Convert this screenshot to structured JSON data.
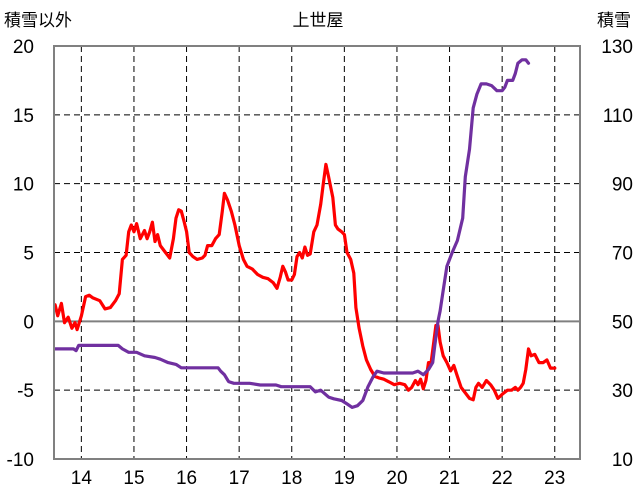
{
  "chart_data": {
    "type": "line",
    "title": "上世屋",
    "left_axis_label": "積雪以外",
    "right_axis_label": "積雪",
    "x_tick_labels": [
      "14",
      "15",
      "16",
      "17",
      "18",
      "19",
      "20",
      "21",
      "22",
      "23"
    ],
    "x_ticks": [
      14,
      15,
      16,
      17,
      18,
      19,
      20,
      21,
      22,
      23
    ],
    "xlim": [
      13.48,
      23.48
    ],
    "ylim_left": [
      -10,
      20
    ],
    "ylim_right": [
      10,
      130
    ],
    "y_ticks_left": [
      20,
      15,
      10,
      5,
      0,
      -5,
      -10
    ],
    "y_ticks_right": [
      130,
      110,
      90,
      70,
      50,
      30,
      10
    ],
    "grid": true,
    "legend": "none",
    "colors": {
      "red_series": "#ff0000",
      "purple_series": "#7030a0",
      "grid": "#000000",
      "zero_line": "#808080"
    },
    "series": [
      {
        "axis": "left",
        "color": "#ff0000",
        "points": [
          [
            13.5,
            1.2
          ],
          [
            13.55,
            0.4
          ],
          [
            13.62,
            1.3
          ],
          [
            13.68,
            -0.1
          ],
          [
            13.75,
            0.3
          ],
          [
            13.82,
            -0.5
          ],
          [
            13.88,
            -0.1
          ],
          [
            13.92,
            -0.6
          ],
          [
            14.0,
            0.4
          ],
          [
            14.08,
            1.8
          ],
          [
            14.15,
            1.9
          ],
          [
            14.22,
            1.7
          ],
          [
            14.35,
            1.5
          ],
          [
            14.45,
            0.9
          ],
          [
            14.55,
            1.0
          ],
          [
            14.65,
            1.5
          ],
          [
            14.72,
            2.0
          ],
          [
            14.78,
            4.5
          ],
          [
            14.85,
            4.8
          ],
          [
            14.9,
            6.5
          ],
          [
            14.95,
            7.0
          ],
          [
            15.0,
            6.5
          ],
          [
            15.05,
            7.1
          ],
          [
            15.12,
            6.0
          ],
          [
            15.2,
            6.6
          ],
          [
            15.25,
            6.0
          ],
          [
            15.3,
            6.5
          ],
          [
            15.35,
            7.2
          ],
          [
            15.4,
            5.8
          ],
          [
            15.45,
            6.3
          ],
          [
            15.5,
            5.5
          ],
          [
            15.6,
            5.0
          ],
          [
            15.68,
            4.6
          ],
          [
            15.75,
            6.0
          ],
          [
            15.8,
            7.5
          ],
          [
            15.85,
            8.1
          ],
          [
            15.9,
            8.0
          ],
          [
            15.95,
            7.3
          ],
          [
            16.0,
            6.5
          ],
          [
            16.05,
            5.0
          ],
          [
            16.12,
            4.7
          ],
          [
            16.2,
            4.5
          ],
          [
            16.3,
            4.6
          ],
          [
            16.35,
            4.8
          ],
          [
            16.4,
            5.5
          ],
          [
            16.48,
            5.5
          ],
          [
            16.55,
            6.0
          ],
          [
            16.62,
            6.3
          ],
          [
            16.68,
            8.0
          ],
          [
            16.72,
            9.3
          ],
          [
            16.78,
            8.8
          ],
          [
            16.85,
            8.0
          ],
          [
            16.92,
            7.0
          ],
          [
            17.0,
            5.5
          ],
          [
            17.08,
            4.5
          ],
          [
            17.15,
            4.0
          ],
          [
            17.25,
            3.8
          ],
          [
            17.35,
            3.4
          ],
          [
            17.45,
            3.2
          ],
          [
            17.55,
            3.1
          ],
          [
            17.65,
            2.8
          ],
          [
            17.72,
            2.4
          ],
          [
            17.78,
            3.2
          ],
          [
            17.83,
            4.0
          ],
          [
            17.88,
            3.6
          ],
          [
            17.93,
            3.0
          ],
          [
            18.0,
            3.0
          ],
          [
            18.05,
            3.4
          ],
          [
            18.1,
            4.7
          ],
          [
            18.15,
            5.0
          ],
          [
            18.2,
            4.6
          ],
          [
            18.25,
            5.4
          ],
          [
            18.3,
            4.8
          ],
          [
            18.35,
            4.9
          ],
          [
            18.42,
            6.5
          ],
          [
            18.48,
            7.0
          ],
          [
            18.55,
            8.5
          ],
          [
            18.6,
            10.0
          ],
          [
            18.65,
            11.4
          ],
          [
            18.7,
            10.5
          ],
          [
            18.78,
            9.0
          ],
          [
            18.83,
            7.0
          ],
          [
            18.88,
            6.7
          ],
          [
            18.95,
            6.5
          ],
          [
            19.0,
            6.3
          ],
          [
            19.05,
            5.0
          ],
          [
            19.12,
            4.5
          ],
          [
            19.18,
            3.5
          ],
          [
            19.22,
            1.0
          ],
          [
            19.28,
            -0.5
          ],
          [
            19.35,
            -1.8
          ],
          [
            19.42,
            -2.8
          ],
          [
            19.5,
            -3.5
          ],
          [
            19.58,
            -4.0
          ],
          [
            19.65,
            -4.1
          ],
          [
            19.75,
            -4.2
          ],
          [
            19.85,
            -4.4
          ],
          [
            19.95,
            -4.6
          ],
          [
            20.05,
            -4.5
          ],
          [
            20.15,
            -4.6
          ],
          [
            20.22,
            -5.0
          ],
          [
            20.28,
            -4.8
          ],
          [
            20.35,
            -4.3
          ],
          [
            20.4,
            -4.6
          ],
          [
            20.45,
            -4.2
          ],
          [
            20.5,
            -4.9
          ],
          [
            20.55,
            -4.3
          ],
          [
            20.6,
            -3.0
          ],
          [
            20.65,
            -3.0
          ],
          [
            20.7,
            -1.5
          ],
          [
            20.74,
            -0.3
          ],
          [
            20.78,
            -0.3
          ],
          [
            20.82,
            -1.5
          ],
          [
            20.88,
            -2.5
          ],
          [
            20.95,
            -3.0
          ],
          [
            21.02,
            -3.6
          ],
          [
            21.08,
            -3.2
          ],
          [
            21.15,
            -4.0
          ],
          [
            21.22,
            -4.8
          ],
          [
            21.3,
            -5.2
          ],
          [
            21.38,
            -5.6
          ],
          [
            21.45,
            -5.7
          ],
          [
            21.5,
            -4.8
          ],
          [
            21.55,
            -4.5
          ],
          [
            21.62,
            -4.8
          ],
          [
            21.7,
            -4.3
          ],
          [
            21.78,
            -4.6
          ],
          [
            21.85,
            -5.0
          ],
          [
            21.92,
            -5.6
          ],
          [
            22.0,
            -5.3
          ],
          [
            22.1,
            -5.0
          ],
          [
            22.18,
            -5.0
          ],
          [
            22.25,
            -4.8
          ],
          [
            22.3,
            -5.0
          ],
          [
            22.35,
            -4.8
          ],
          [
            22.4,
            -4.5
          ],
          [
            22.45,
            -3.5
          ],
          [
            22.5,
            -2.0
          ],
          [
            22.55,
            -2.5
          ],
          [
            22.62,
            -2.4
          ],
          [
            22.7,
            -3.0
          ],
          [
            22.78,
            -3.0
          ],
          [
            22.85,
            -2.8
          ],
          [
            22.92,
            -3.4
          ],
          [
            23.0,
            -3.4
          ]
        ]
      },
      {
        "axis": "right",
        "color": "#7030a0",
        "points": [
          [
            13.5,
            42
          ],
          [
            13.6,
            42
          ],
          [
            13.7,
            42
          ],
          [
            13.85,
            42
          ],
          [
            13.9,
            41.5
          ],
          [
            13.95,
            43
          ],
          [
            14.1,
            43
          ],
          [
            14.3,
            43
          ],
          [
            14.5,
            43
          ],
          [
            14.7,
            43
          ],
          [
            14.78,
            42
          ],
          [
            14.9,
            41
          ],
          [
            15.05,
            41
          ],
          [
            15.2,
            40
          ],
          [
            15.4,
            39.5
          ],
          [
            15.5,
            39
          ],
          [
            15.65,
            38
          ],
          [
            15.8,
            37.5
          ],
          [
            15.9,
            36.5
          ],
          [
            16.1,
            36.5
          ],
          [
            16.3,
            36.5
          ],
          [
            16.5,
            36.5
          ],
          [
            16.6,
            36.5
          ],
          [
            16.65,
            35.5
          ],
          [
            16.72,
            34.5
          ],
          [
            16.8,
            32.5
          ],
          [
            16.9,
            32
          ],
          [
            17.0,
            32
          ],
          [
            17.2,
            32
          ],
          [
            17.4,
            31.5
          ],
          [
            17.55,
            31.5
          ],
          [
            17.7,
            31.5
          ],
          [
            17.8,
            31
          ],
          [
            18.0,
            31
          ],
          [
            18.2,
            31
          ],
          [
            18.35,
            31
          ],
          [
            18.45,
            29.5
          ],
          [
            18.55,
            30
          ],
          [
            18.7,
            28
          ],
          [
            18.8,
            27.5
          ],
          [
            18.95,
            27
          ],
          [
            19.05,
            26
          ],
          [
            19.15,
            25
          ],
          [
            19.25,
            25.5
          ],
          [
            19.35,
            27
          ],
          [
            19.45,
            31
          ],
          [
            19.55,
            34
          ],
          [
            19.62,
            35.5
          ],
          [
            19.75,
            35
          ],
          [
            19.85,
            35
          ],
          [
            20.0,
            35
          ],
          [
            20.1,
            35
          ],
          [
            20.2,
            35
          ],
          [
            20.3,
            35
          ],
          [
            20.4,
            35.5
          ],
          [
            20.5,
            34.5
          ],
          [
            20.6,
            36
          ],
          [
            20.68,
            38
          ],
          [
            20.72,
            43
          ],
          [
            20.78,
            50
          ],
          [
            20.82,
            53
          ],
          [
            20.88,
            59
          ],
          [
            20.95,
            66
          ],
          [
            21.05,
            70
          ],
          [
            21.15,
            73.5
          ],
          [
            21.25,
            80
          ],
          [
            21.3,
            92
          ],
          [
            21.38,
            100
          ],
          [
            21.45,
            112
          ],
          [
            21.52,
            116
          ],
          [
            21.6,
            119
          ],
          [
            21.7,
            119
          ],
          [
            21.8,
            118.5
          ],
          [
            21.9,
            117
          ],
          [
            22.0,
            117
          ],
          [
            22.05,
            118
          ],
          [
            22.1,
            120
          ],
          [
            22.2,
            120
          ],
          [
            22.25,
            122
          ],
          [
            22.3,
            125
          ],
          [
            22.38,
            126
          ],
          [
            22.45,
            126
          ],
          [
            22.5,
            125
          ]
        ]
      }
    ]
  }
}
